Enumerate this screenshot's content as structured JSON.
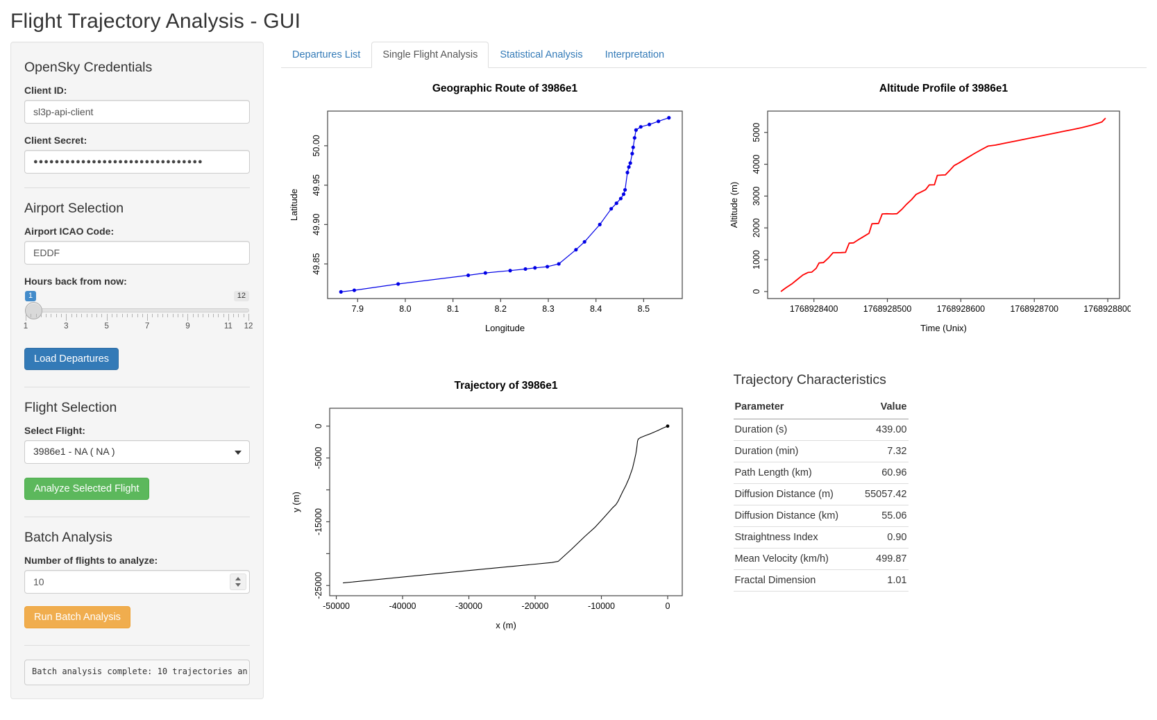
{
  "header": {
    "title": "Flight Trajectory Analysis - GUI"
  },
  "sidebar": {
    "credentials": {
      "heading": "OpenSky Credentials",
      "client_id_label": "Client ID:",
      "client_id_value": "sl3p-api-client",
      "client_secret_label": "Client Secret:",
      "client_secret_value": "●●●●●●●●●●●●●●●●●●●●●●●●●●●●●●●●"
    },
    "airport": {
      "heading": "Airport Selection",
      "icao_label": "Airport ICAO Code:",
      "icao_value": "EDDF",
      "hours_label": "Hours back from now:",
      "slider": {
        "value": 1,
        "min": 1,
        "max": 12,
        "value_badge": "1",
        "max_badge": "12",
        "tick_labels": [
          1,
          3,
          5,
          7,
          9,
          11,
          12
        ]
      },
      "load_button": "Load Departures"
    },
    "flight": {
      "heading": "Flight Selection",
      "select_label": "Select Flight:",
      "select_value": "3986e1 - NA ( NA )",
      "analyze_button": "Analyze Selected Flight"
    },
    "batch": {
      "heading": "Batch Analysis",
      "num_label": "Number of flights to analyze:",
      "num_value": "10",
      "run_button": "Run Batch Analysis",
      "status": "Batch analysis complete: 10 trajectories an"
    }
  },
  "tabs": [
    {
      "label": "Departures List",
      "active": false
    },
    {
      "label": "Single Flight Analysis",
      "active": true
    },
    {
      "label": "Statistical Analysis",
      "active": false
    },
    {
      "label": "Interpretation",
      "active": false
    }
  ],
  "table": {
    "title": "Trajectory Characteristics",
    "columns": [
      "Parameter",
      "Value"
    ],
    "rows": [
      [
        "Duration (s)",
        "439.00"
      ],
      [
        "Duration (min)",
        "7.32"
      ],
      [
        "Path Length (km)",
        "60.96"
      ],
      [
        "Diffusion Distance (m)",
        "55057.42"
      ],
      [
        "Diffusion Distance (km)",
        "55.06"
      ],
      [
        "Straightness Index",
        "0.90"
      ],
      [
        "Mean Velocity (km/h)",
        "499.87"
      ],
      [
        "Fractal Dimension",
        "1.01"
      ]
    ]
  },
  "chart_data": [
    {
      "type": "line",
      "title": "Geographic Route of 3986e1",
      "xlabel": "Longitude",
      "ylabel": "Latitude",
      "color": "#0000e6",
      "lw": 1.2,
      "markers": true,
      "xlim": [
        7.837,
        8.581
      ],
      "ylim": [
        49.806,
        50.044
      ],
      "xticks": [
        {
          "v": 7.9,
          "l": "7.9"
        },
        {
          "v": 8.0,
          "l": "8.0"
        },
        {
          "v": 8.1,
          "l": "8.1"
        },
        {
          "v": 8.2,
          "l": "8.2"
        },
        {
          "v": 8.3,
          "l": "8.3"
        },
        {
          "v": 8.4,
          "l": "8.4"
        },
        {
          "v": 8.5,
          "l": "8.5"
        }
      ],
      "yticks": [
        {
          "v": 49.85,
          "l": "49.85"
        },
        {
          "v": 49.9,
          "l": "49.90"
        },
        {
          "v": 49.95,
          "l": "49.95"
        },
        {
          "v": 50.0,
          "l": "50.00"
        }
      ],
      "x": [
        7.865,
        7.893,
        7.985,
        8.132,
        8.168,
        8.22,
        8.252,
        8.272,
        8.298,
        8.322,
        8.358,
        8.376,
        8.408,
        8.432,
        8.443,
        8.452,
        8.458,
        8.461,
        8.466,
        8.469,
        8.472,
        8.476,
        8.478,
        8.481,
        8.484,
        8.494,
        8.512,
        8.531,
        8.553
      ],
      "y": [
        49.8145,
        49.8165,
        49.8245,
        49.8355,
        49.8385,
        49.8415,
        49.8435,
        49.845,
        49.8465,
        49.85,
        49.868,
        49.878,
        49.9,
        49.92,
        49.927,
        49.933,
        49.9385,
        49.944,
        49.966,
        49.973,
        49.978,
        49.99,
        49.998,
        50.01,
        50.02,
        50.024,
        50.027,
        50.031,
        50.0355
      ]
    },
    {
      "type": "line",
      "title": "Altitude Profile of 3986e1",
      "xlabel": "Time (Unix)",
      "ylabel": "Altitude (m)",
      "color": "#ff0000",
      "lw": 1.8,
      "markers": false,
      "xlim": [
        1768928337,
        1768928816
      ],
      "ylim": [
        -220,
        5670
      ],
      "xticks": [
        {
          "v": 1768928400,
          "l": "1768928400"
        },
        {
          "v": 1768928500,
          "l": "1768928500"
        },
        {
          "v": 1768928600,
          "l": "1768928600"
        },
        {
          "v": 1768928700,
          "l": "1768928700"
        },
        {
          "v": 1768928800,
          "l": "1768928800"
        }
      ],
      "yticks": [
        {
          "v": 0,
          "l": "0"
        },
        {
          "v": 1000,
          "l": "1000"
        },
        {
          "v": 2000,
          "l": "2000"
        },
        {
          "v": 3000,
          "l": "3000"
        },
        {
          "v": 4000,
          "l": "4000"
        },
        {
          "v": 5000,
          "l": "5000"
        }
      ],
      "x": [
        1768928355,
        1768928362,
        1768928370,
        1768928378,
        1768928385,
        1768928392,
        1768928397,
        1768928403,
        1768928407,
        1768928413,
        1768928420,
        1768928426,
        1768928437,
        1768928443,
        1768928448,
        1768928454,
        1768928462,
        1768928470,
        1768928475,
        1768928479,
        1768928488,
        1768928493,
        1768928499,
        1768928507,
        1768928513,
        1768928520,
        1768928526,
        1768928533,
        1768928539,
        1768928546,
        1768928552,
        1768928557,
        1768928564,
        1768928568,
        1768928574,
        1768928579,
        1768928585,
        1768928591,
        1768928598,
        1768928608,
        1768928618,
        1768928628,
        1768928637,
        1768928647,
        1768928662,
        1768928677,
        1768928692,
        1768928707,
        1768928722,
        1768928737,
        1768928752,
        1768928765,
        1768928778,
        1768928787,
        1768928792,
        1768928797
      ],
      "y": [
        0,
        120,
        240,
        390,
        520,
        600,
        610,
        730,
        900,
        910,
        1060,
        1220,
        1225,
        1230,
        1520,
        1530,
        1650,
        1760,
        1830,
        2130,
        2140,
        2440,
        2445,
        2440,
        2445,
        2590,
        2740,
        2890,
        3050,
        3130,
        3200,
        3350,
        3355,
        3650,
        3660,
        3665,
        3810,
        3960,
        4050,
        4190,
        4330,
        4460,
        4570,
        4600,
        4670,
        4740,
        4810,
        4880,
        4950,
        5020,
        5090,
        5150,
        5230,
        5290,
        5330,
        5450
      ]
    },
    {
      "type": "line",
      "title": "Trajectory of 3986e1",
      "xlabel": "x (m)",
      "ylabel": "y (m)",
      "color": "#000000",
      "lw": 1.1,
      "markers": false,
      "end_marker": [
        0,
        0
      ],
      "xlim": [
        -51000,
        2200
      ],
      "ylim": [
        -26600,
        2800
      ],
      "xticks": [
        {
          "v": -50000,
          "l": "-50000"
        },
        {
          "v": -40000,
          "l": "-40000"
        },
        {
          "v": -30000,
          "l": "-30000"
        },
        {
          "v": -20000,
          "l": "-20000"
        },
        {
          "v": -10000,
          "l": "-10000"
        },
        {
          "v": 0,
          "l": "0"
        }
      ],
      "yticks": [
        {
          "v": 0,
          "l": "0"
        },
        {
          "v": -5000,
          "l": "-5000"
        },
        {
          "v": -10000,
          "l": ""
        },
        {
          "v": -15000,
          "l": "-15000"
        },
        {
          "v": -20000,
          "l": ""
        },
        {
          "v": -25000,
          "l": "-25000"
        }
      ],
      "x": [
        -49000,
        -30000,
        -17500,
        -16500,
        -14500,
        -12500,
        -11000,
        -9500,
        -8300,
        -7800,
        -7500,
        -6800,
        -6300,
        -5800,
        -5300,
        -5000,
        -4800,
        -4650,
        -4550,
        -4450,
        -4100,
        -3400,
        -2500,
        -1500,
        -700,
        0
      ],
      "y": [
        -24600,
        -22650,
        -21400,
        -21200,
        -19300,
        -17300,
        -15900,
        -14200,
        -12800,
        -12300,
        -11800,
        -10300,
        -9300,
        -8100,
        -6600,
        -5300,
        -4300,
        -3300,
        -2400,
        -2050,
        -1800,
        -1500,
        -1150,
        -700,
        -300,
        0
      ]
    }
  ]
}
